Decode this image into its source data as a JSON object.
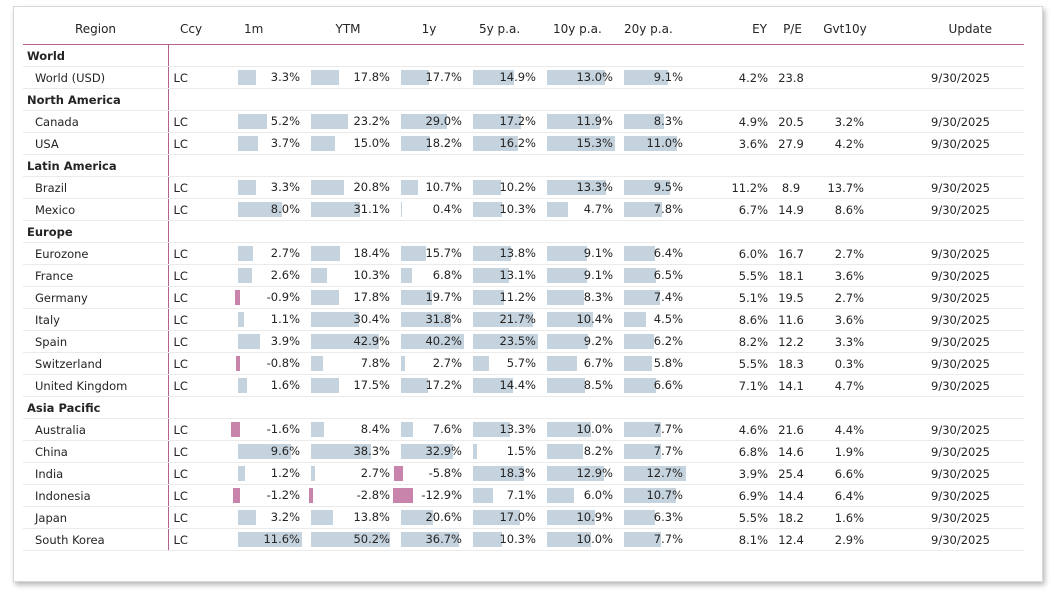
{
  "columns": [
    "Region",
    "Ccy",
    "1m",
    "YTM",
    "1y",
    "5y p.a.",
    "10y p.a.",
    "20y p.a.",
    "EY",
    "P/E",
    "Gvt10y",
    "Update"
  ],
  "bar_scales": {
    "m1": 11.6,
    "ytm": 50.2,
    "y1": 40.2,
    "y5": 23.5,
    "y10": 15.3,
    "y20": 12.7
  },
  "bar_colors": {
    "positive": "#c5d3df",
    "negative": "#c984ab",
    "header_rule": "#b0628a"
  },
  "rows": [
    {
      "type": "group",
      "label": "World"
    },
    {
      "type": "row",
      "region": "World (USD)",
      "ccy": "LC",
      "m1": "3.3%",
      "ytm": "17.8%",
      "y1": "17.7%",
      "y5": "14.9%",
      "y10": "13.0%",
      "y20": "9.1%",
      "ey": "4.2%",
      "pe": "23.8",
      "gvt": "",
      "update": "9/30/2025"
    },
    {
      "type": "group",
      "label": "North America"
    },
    {
      "type": "row",
      "region": "Canada",
      "ccy": "LC",
      "m1": "5.2%",
      "ytm": "23.2%",
      "y1": "29.0%",
      "y5": "17.2%",
      "y10": "11.9%",
      "y20": "8.3%",
      "ey": "4.9%",
      "pe": "20.5",
      "gvt": "3.2%",
      "update": "9/30/2025"
    },
    {
      "type": "row",
      "region": "USA",
      "ccy": "LC",
      "m1": "3.7%",
      "ytm": "15.0%",
      "y1": "18.2%",
      "y5": "16.2%",
      "y10": "15.3%",
      "y20": "11.0%",
      "ey": "3.6%",
      "pe": "27.9",
      "gvt": "4.2%",
      "update": "9/30/2025"
    },
    {
      "type": "group",
      "label": "Latin America"
    },
    {
      "type": "row",
      "region": "Brazil",
      "ccy": "LC",
      "m1": "3.3%",
      "ytm": "20.8%",
      "y1": "10.7%",
      "y5": "10.2%",
      "y10": "13.3%",
      "y20": "9.5%",
      "ey": "11.2%",
      "pe": "8.9",
      "gvt": "13.7%",
      "update": "9/30/2025"
    },
    {
      "type": "row",
      "region": "Mexico",
      "ccy": "LC",
      "m1": "8.0%",
      "ytm": "31.1%",
      "y1": "0.4%",
      "y5": "10.3%",
      "y10": "4.7%",
      "y20": "7.8%",
      "ey": "6.7%",
      "pe": "14.9",
      "gvt": "8.6%",
      "update": "9/30/2025"
    },
    {
      "type": "group",
      "label": "Europe"
    },
    {
      "type": "row",
      "region": "Eurozone",
      "ccy": "LC",
      "m1": "2.7%",
      "ytm": "18.4%",
      "y1": "15.7%",
      "y5": "13.8%",
      "y10": "9.1%",
      "y20": "6.4%",
      "ey": "6.0%",
      "pe": "16.7",
      "gvt": "2.7%",
      "update": "9/30/2025"
    },
    {
      "type": "row",
      "region": "France",
      "ccy": "LC",
      "m1": "2.6%",
      "ytm": "10.3%",
      "y1": "6.8%",
      "y5": "13.1%",
      "y10": "9.1%",
      "y20": "6.5%",
      "ey": "5.5%",
      "pe": "18.1",
      "gvt": "3.6%",
      "update": "9/30/2025"
    },
    {
      "type": "row",
      "region": "Germany",
      "ccy": "LC",
      "m1": "-0.9%",
      "ytm": "17.8%",
      "y1": "19.7%",
      "y5": "11.2%",
      "y10": "8.3%",
      "y20": "7.4%",
      "ey": "5.1%",
      "pe": "19.5",
      "gvt": "2.7%",
      "update": "9/30/2025"
    },
    {
      "type": "row",
      "region": "Italy",
      "ccy": "LC",
      "m1": "1.1%",
      "ytm": "30.4%",
      "y1": "31.8%",
      "y5": "21.7%",
      "y10": "10.4%",
      "y20": "4.5%",
      "ey": "8.6%",
      "pe": "11.6",
      "gvt": "3.6%",
      "update": "9/30/2025"
    },
    {
      "type": "row",
      "region": "Spain",
      "ccy": "LC",
      "m1": "3.9%",
      "ytm": "42.9%",
      "y1": "40.2%",
      "y5": "23.5%",
      "y10": "9.2%",
      "y20": "6.2%",
      "ey": "8.2%",
      "pe": "12.2",
      "gvt": "3.3%",
      "update": "9/30/2025"
    },
    {
      "type": "row",
      "region": "Switzerland",
      "ccy": "LC",
      "m1": "-0.8%",
      "ytm": "7.8%",
      "y1": "2.7%",
      "y5": "5.7%",
      "y10": "6.7%",
      "y20": "5.8%",
      "ey": "5.5%",
      "pe": "18.3",
      "gvt": "0.3%",
      "update": "9/30/2025"
    },
    {
      "type": "row",
      "region": "United Kingdom",
      "ccy": "LC",
      "m1": "1.6%",
      "ytm": "17.5%",
      "y1": "17.2%",
      "y5": "14.4%",
      "y10": "8.5%",
      "y20": "6.6%",
      "ey": "7.1%",
      "pe": "14.1",
      "gvt": "4.7%",
      "update": "9/30/2025"
    },
    {
      "type": "group",
      "label": "Asia Pacific"
    },
    {
      "type": "row",
      "region": "Australia",
      "ccy": "LC",
      "m1": "-1.6%",
      "ytm": "8.4%",
      "y1": "7.6%",
      "y5": "13.3%",
      "y10": "10.0%",
      "y20": "7.7%",
      "ey": "4.6%",
      "pe": "21.6",
      "gvt": "4.4%",
      "update": "9/30/2025"
    },
    {
      "type": "row",
      "region": "China",
      "ccy": "LC",
      "m1": "9.6%",
      "ytm": "38.3%",
      "y1": "32.9%",
      "y5": "1.5%",
      "y10": "8.2%",
      "y20": "7.7%",
      "ey": "6.8%",
      "pe": "14.6",
      "gvt": "1.9%",
      "update": "9/30/2025"
    },
    {
      "type": "row",
      "region": "India",
      "ccy": "LC",
      "m1": "1.2%",
      "ytm": "2.7%",
      "y1": "-5.8%",
      "y5": "18.3%",
      "y10": "12.9%",
      "y20": "12.7%",
      "ey": "3.9%",
      "pe": "25.4",
      "gvt": "6.6%",
      "update": "9/30/2025"
    },
    {
      "type": "row",
      "region": "Indonesia",
      "ccy": "LC",
      "m1": "-1.2%",
      "ytm": "-2.8%",
      "y1": "-12.9%",
      "y5": "7.1%",
      "y10": "6.0%",
      "y20": "10.7%",
      "ey": "6.9%",
      "pe": "14.4",
      "gvt": "6.4%",
      "update": "9/30/2025"
    },
    {
      "type": "row",
      "region": "Japan",
      "ccy": "LC",
      "m1": "3.2%",
      "ytm": "13.8%",
      "y1": "20.6%",
      "y5": "17.0%",
      "y10": "10.9%",
      "y20": "6.3%",
      "ey": "5.5%",
      "pe": "18.2",
      "gvt": "1.6%",
      "update": "9/30/2025"
    },
    {
      "type": "row",
      "region": "South Korea",
      "ccy": "LC",
      "m1": "11.6%",
      "ytm": "50.2%",
      "y1": "36.7%",
      "y5": "10.3%",
      "y10": "10.0%",
      "y20": "7.7%",
      "ey": "8.1%",
      "pe": "12.4",
      "gvt": "2.9%",
      "update": "9/30/2025"
    }
  ]
}
